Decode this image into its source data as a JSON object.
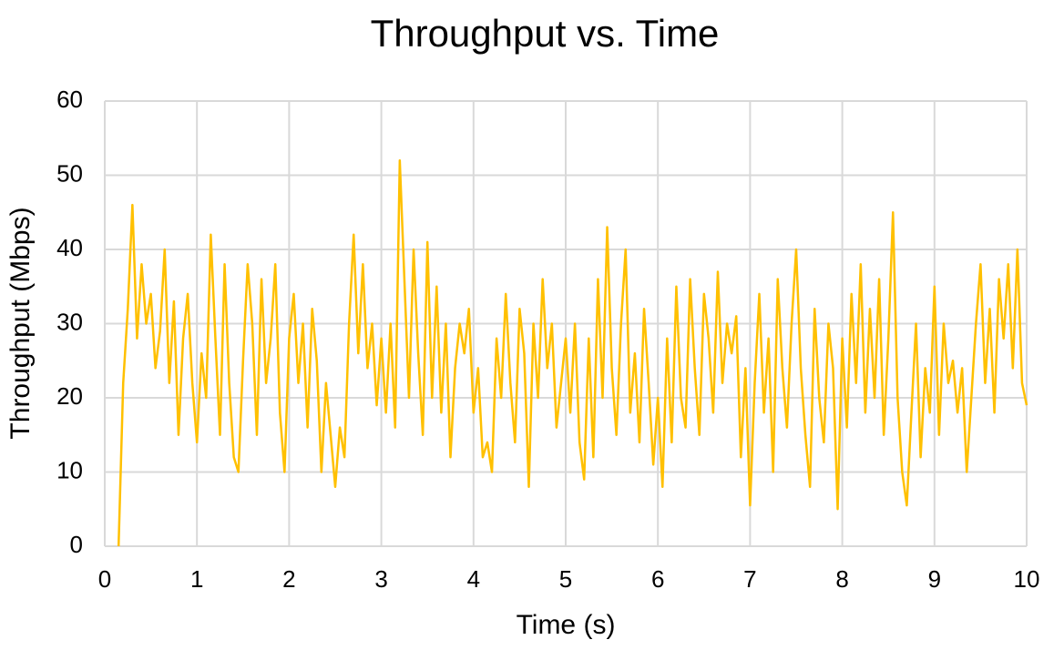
{
  "chart_data": {
    "type": "line",
    "title": "Throughput vs. Time",
    "x_label": "Time (s)",
    "y_label": "Throughput (Mbps)",
    "color": "#ffc000",
    "grid": true,
    "xlim": [
      0,
      10
    ],
    "xticks": [
      0,
      1,
      2,
      3,
      4,
      5,
      6,
      7,
      8,
      9,
      10
    ],
    "ylim": [
      0,
      60
    ],
    "yticks": [
      0,
      10,
      20,
      30,
      40,
      50,
      60
    ],
    "x": [
      0.15,
      0.2,
      0.25,
      0.3,
      0.35,
      0.4,
      0.45,
      0.5,
      0.55,
      0.6,
      0.65,
      0.7,
      0.75,
      0.8,
      0.85,
      0.9,
      0.95,
      1.0,
      1.05,
      1.1,
      1.15,
      1.2,
      1.25,
      1.3,
      1.35,
      1.4,
      1.45,
      1.5,
      1.55,
      1.6,
      1.65,
      1.7,
      1.75,
      1.8,
      1.85,
      1.9,
      1.95,
      2.0,
      2.05,
      2.1,
      2.15,
      2.2,
      2.25,
      2.3,
      2.35,
      2.4,
      2.45,
      2.5,
      2.55,
      2.6,
      2.65,
      2.7,
      2.75,
      2.8,
      2.85,
      2.9,
      2.95,
      3.0,
      3.05,
      3.1,
      3.15,
      3.2,
      3.25,
      3.3,
      3.35,
      3.4,
      3.45,
      3.5,
      3.55,
      3.6,
      3.65,
      3.7,
      3.75,
      3.8,
      3.85,
      3.9,
      3.95,
      4.0,
      4.05,
      4.1,
      4.15,
      4.2,
      4.25,
      4.3,
      4.35,
      4.4,
      4.45,
      4.5,
      4.55,
      4.6,
      4.65,
      4.7,
      4.75,
      4.8,
      4.85,
      4.9,
      4.95,
      5.0,
      5.05,
      5.1,
      5.15,
      5.2,
      5.25,
      5.3,
      5.35,
      5.4,
      5.45,
      5.5,
      5.55,
      5.6,
      5.65,
      5.7,
      5.75,
      5.8,
      5.85,
      5.9,
      5.95,
      6.0,
      6.05,
      6.1,
      6.15,
      6.2,
      6.25,
      6.3,
      6.35,
      6.4,
      6.45,
      6.5,
      6.55,
      6.6,
      6.65,
      6.7,
      6.75,
      6.8,
      6.85,
      6.9,
      6.95,
      7.0,
      7.05,
      7.1,
      7.15,
      7.2,
      7.25,
      7.3,
      7.35,
      7.4,
      7.45,
      7.5,
      7.55,
      7.6,
      7.65,
      7.7,
      7.75,
      7.8,
      7.85,
      7.9,
      7.95,
      8.0,
      8.05,
      8.1,
      8.15,
      8.2,
      8.25,
      8.3,
      8.35,
      8.4,
      8.45,
      8.5,
      8.55,
      8.6,
      8.65,
      8.7,
      8.75,
      8.8,
      8.85,
      8.9,
      8.95,
      9.0,
      9.05,
      9.1,
      9.15,
      9.2,
      9.25,
      9.3,
      9.35,
      9.4,
      9.45,
      9.5,
      9.55,
      9.6,
      9.65,
      9.7,
      9.75,
      9.8,
      9.85,
      9.9,
      9.95,
      10.0
    ],
    "values": [
      0,
      22,
      32,
      46,
      28,
      38,
      30,
      34,
      24,
      29,
      40,
      22,
      33,
      15,
      28,
      34,
      22,
      14,
      26,
      20,
      42,
      28,
      15,
      38,
      22,
      12,
      10,
      25,
      38,
      30,
      15,
      36,
      22,
      28,
      38,
      18,
      10,
      28,
      34,
      22,
      30,
      16,
      32,
      25,
      10,
      22,
      15,
      8,
      16,
      12,
      30,
      42,
      26,
      38,
      24,
      30,
      19,
      28,
      18,
      30,
      16,
      52,
      36,
      20,
      40,
      26,
      15,
      41,
      20,
      35,
      18,
      30,
      12,
      24,
      30,
      26,
      32,
      18,
      24,
      12,
      14,
      10,
      28,
      20,
      34,
      22,
      14,
      32,
      26,
      8,
      30,
      20,
      36,
      24,
      30,
      16,
      22,
      28,
      18,
      30,
      14,
      9,
      28,
      12,
      36,
      20,
      43,
      24,
      15,
      30,
      40,
      18,
      26,
      14,
      32,
      22,
      11,
      20,
      8,
      28,
      14,
      35,
      20,
      16,
      36,
      24,
      15,
      34,
      28,
      18,
      37,
      22,
      30,
      26,
      31,
      12,
      24,
      5.5,
      22,
      34,
      18,
      28,
      10,
      36,
      24,
      16,
      30,
      40,
      24,
      15,
      8,
      32,
      20,
      14,
      30,
      24,
      5,
      28,
      16,
      34,
      22,
      38,
      18,
      32,
      20,
      36,
      15,
      28,
      45,
      20,
      10,
      5.5,
      18,
      30,
      12,
      24,
      18,
      35,
      15,
      30,
      22,
      25,
      18,
      24,
      10,
      20,
      30,
      38,
      22,
      32,
      18,
      36,
      28,
      38,
      24,
      40,
      22,
      19
    ]
  }
}
